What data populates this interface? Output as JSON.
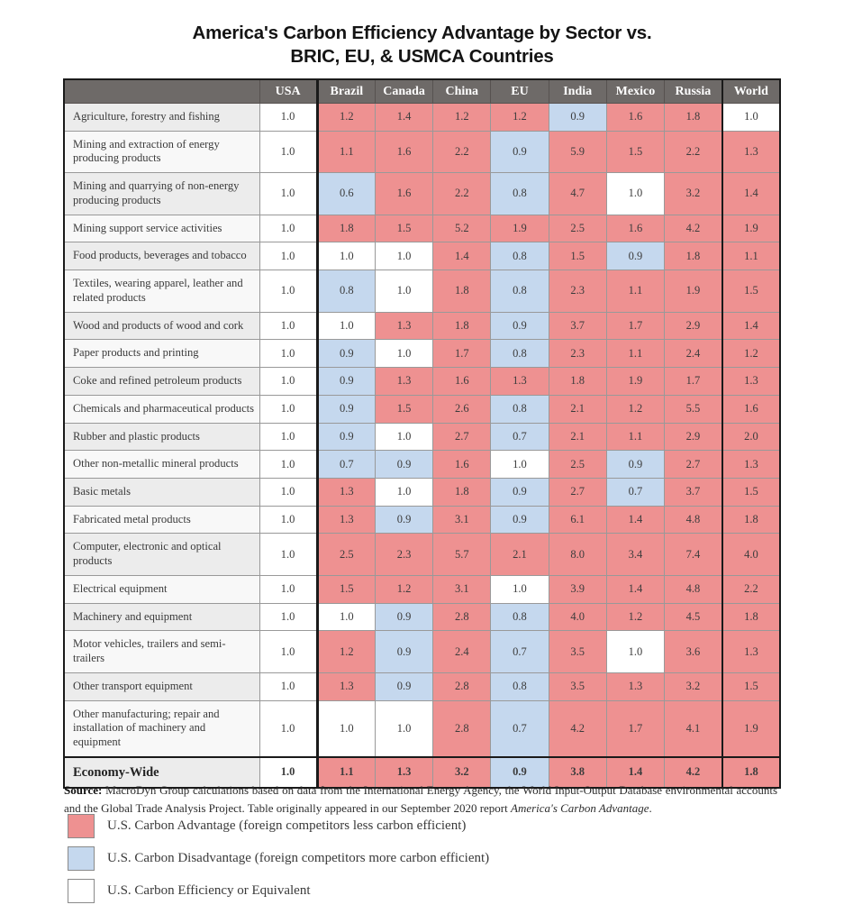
{
  "title": {
    "line1": "America's Carbon Efficiency Advantage by Sector vs.",
    "line2": "BRIC, EU, & USMCA Countries"
  },
  "colors": {
    "advantage": "#ee9191",
    "disadvantage": "#c5d8ee",
    "equivalent": "#ffffff",
    "header_bg": "#6e6a68",
    "header_text": "#ffffff",
    "row_label_odd": "#ececec",
    "row_label_even": "#f8f8f8",
    "grid": "#999999",
    "frame": "#1a1a1a"
  },
  "chart_data": {
    "type": "heatmap",
    "title": "America's Carbon Efficiency Advantage by Sector vs. BRIC, EU, & USMCA Countries",
    "columns": [
      "USA",
      "Brazil",
      "Canada",
      "China",
      "EU",
      "India",
      "Mexico",
      "Russia",
      "World"
    ],
    "cell_class_key": {
      "r": "U.S. carbon advantage (red)",
      "b": "U.S. carbon disadvantage (blue)",
      "w": "U.S. carbon efficiency or equivalent (white)"
    },
    "rows": [
      {
        "sector": "Agriculture, forestry and fishing",
        "values": [
          "1.0",
          "1.2",
          "1.4",
          "1.2",
          "1.2",
          "0.9",
          "1.6",
          "1.8",
          "1.0"
        ],
        "classes": "wrrrrbrrw",
        "bold": false
      },
      {
        "sector": "Mining and extraction of energy producing products",
        "values": [
          "1.0",
          "1.1",
          "1.6",
          "2.2",
          "0.9",
          "5.9",
          "1.5",
          "2.2",
          "1.3"
        ],
        "classes": "wrrrbrrrr",
        "bold": false
      },
      {
        "sector": "Mining and quarrying of non-energy producing products",
        "values": [
          "1.0",
          "0.6",
          "1.6",
          "2.2",
          "0.8",
          "4.7",
          "1.0",
          "3.2",
          "1.4"
        ],
        "classes": "wbrrbrwrr",
        "bold": false
      },
      {
        "sector": "Mining support service activities",
        "values": [
          "1.0",
          "1.8",
          "1.5",
          "5.2",
          "1.9",
          "2.5",
          "1.6",
          "4.2",
          "1.9"
        ],
        "classes": "wrrrrrrrr",
        "bold": false
      },
      {
        "sector": "Food products, beverages and tobacco",
        "values": [
          "1.0",
          "1.0",
          "1.0",
          "1.4",
          "0.8",
          "1.5",
          "0.9",
          "1.8",
          "1.1"
        ],
        "classes": "wwwrbrbrr",
        "bold": false
      },
      {
        "sector": "Textiles, wearing apparel, leather and related products",
        "values": [
          "1.0",
          "0.8",
          "1.0",
          "1.8",
          "0.8",
          "2.3",
          "1.1",
          "1.9",
          "1.5"
        ],
        "classes": "wbwrbrrrr",
        "bold": false
      },
      {
        "sector": "Wood and products of wood and cork",
        "values": [
          "1.0",
          "1.0",
          "1.3",
          "1.8",
          "0.9",
          "3.7",
          "1.7",
          "2.9",
          "1.4"
        ],
        "classes": "wwrrbrrrr",
        "bold": false
      },
      {
        "sector": "Paper products and printing",
        "values": [
          "1.0",
          "0.9",
          "1.0",
          "1.7",
          "0.8",
          "2.3",
          "1.1",
          "2.4",
          "1.2"
        ],
        "classes": "wbwrbrrrr",
        "bold": false
      },
      {
        "sector": "Coke and refined petroleum products",
        "values": [
          "1.0",
          "0.9",
          "1.3",
          "1.6",
          "1.3",
          "1.8",
          "1.9",
          "1.7",
          "1.3"
        ],
        "classes": "wbrrrrrrr",
        "bold": false
      },
      {
        "sector": "Chemicals and pharmaceutical products",
        "values": [
          "1.0",
          "0.9",
          "1.5",
          "2.6",
          "0.8",
          "2.1",
          "1.2",
          "5.5",
          "1.6"
        ],
        "classes": "wbrrbrrrr",
        "bold": false
      },
      {
        "sector": "Rubber and plastic products",
        "values": [
          "1.0",
          "0.9",
          "1.0",
          "2.7",
          "0.7",
          "2.1",
          "1.1",
          "2.9",
          "2.0"
        ],
        "classes": "wbwrbrrrr",
        "bold": false
      },
      {
        "sector": "Other non-metallic mineral products",
        "values": [
          "1.0",
          "0.7",
          "0.9",
          "1.6",
          "1.0",
          "2.5",
          "0.9",
          "2.7",
          "1.3"
        ],
        "classes": "wbbrwrbrr",
        "bold": false
      },
      {
        "sector": "Basic metals",
        "values": [
          "1.0",
          "1.3",
          "1.0",
          "1.8",
          "0.9",
          "2.7",
          "0.7",
          "3.7",
          "1.5"
        ],
        "classes": "wrwrbrbrr",
        "bold": false
      },
      {
        "sector": "Fabricated metal products",
        "values": [
          "1.0",
          "1.3",
          "0.9",
          "3.1",
          "0.9",
          "6.1",
          "1.4",
          "4.8",
          "1.8"
        ],
        "classes": "wrbrbrrrr",
        "bold": false
      },
      {
        "sector": "Computer, electronic and optical products",
        "values": [
          "1.0",
          "2.5",
          "2.3",
          "5.7",
          "2.1",
          "8.0",
          "3.4",
          "7.4",
          "4.0"
        ],
        "classes": "wrrrrrrrr",
        "bold": false
      },
      {
        "sector": "Electrical equipment",
        "values": [
          "1.0",
          "1.5",
          "1.2",
          "3.1",
          "1.0",
          "3.9",
          "1.4",
          "4.8",
          "2.2"
        ],
        "classes": "wrrrwrrrr",
        "bold": false
      },
      {
        "sector": "Machinery and equipment",
        "values": [
          "1.0",
          "1.0",
          "0.9",
          "2.8",
          "0.8",
          "4.0",
          "1.2",
          "4.5",
          "1.8"
        ],
        "classes": "wwbrbrrrr",
        "bold": false
      },
      {
        "sector": "Motor vehicles, trailers and semi-trailers",
        "values": [
          "1.0",
          "1.2",
          "0.9",
          "2.4",
          "0.7",
          "3.5",
          "1.0",
          "3.6",
          "1.3"
        ],
        "classes": "wrbrbrwrr",
        "bold": false
      },
      {
        "sector": "Other transport equipment",
        "values": [
          "1.0",
          "1.3",
          "0.9",
          "2.8",
          "0.8",
          "3.5",
          "1.3",
          "3.2",
          "1.5"
        ],
        "classes": "wrbrbrrrr",
        "bold": false
      },
      {
        "sector": "Other manufacturing; repair and installation of machinery and equipment",
        "values": [
          "1.0",
          "1.0",
          "1.0",
          "2.8",
          "0.7",
          "4.2",
          "1.7",
          "4.1",
          "1.9"
        ],
        "classes": "wwwrbrrrr",
        "bold": false
      },
      {
        "sector": "Economy-Wide",
        "values": [
          "1.0",
          "1.1",
          "1.3",
          "3.2",
          "0.9",
          "3.8",
          "1.4",
          "4.2",
          "1.8"
        ],
        "classes": "wrrrbrrrr",
        "bold": true
      }
    ],
    "legend": [
      "U.S. Carbon Advantage (foreign competitors less carbon efficient)",
      "U.S. Carbon Disadvantage (foreign competitors more carbon efficient)",
      "U.S. Carbon Efficiency or Equivalent"
    ],
    "grid": true,
    "legend_position": "bottom-left"
  },
  "source": {
    "label": "Source:",
    "text": " MacroDyn Group calculations based on data from the International Energy Agency, the World Input-Output Database environmental accounts and the Global Trade Analysis Project. Table originally appeared in our September 2020 report ",
    "italic": "America's Carbon Advantage",
    "suffix": "."
  },
  "legend": {
    "items": [
      {
        "key": "advantage",
        "label": "U.S. Carbon Advantage (foreign competitors less carbon efficient)"
      },
      {
        "key": "disadvantage",
        "label": "U.S. Carbon Disadvantage (foreign competitors more carbon efficient)"
      },
      {
        "key": "equivalent",
        "label": "U.S. Carbon Efficiency or Equivalent"
      }
    ]
  }
}
